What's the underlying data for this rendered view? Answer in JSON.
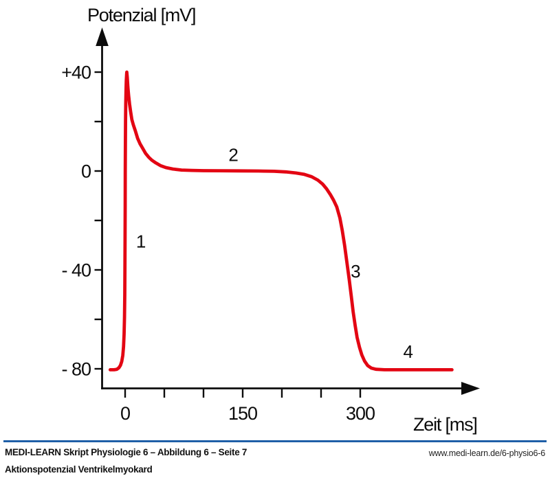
{
  "figure": {
    "y_axis_title": "Potenzial [mV]",
    "x_axis_title": "Zeit [ms]"
  },
  "colors": {
    "curve_red": "#e30613",
    "axis_black": "#0c0c0c",
    "divider_blue": "#1f5fa8"
  },
  "chart_data": {
    "type": "line",
    "title": "Aktionspotenzial Ventrikelmyokard",
    "xlabel": "Zeit [ms]",
    "ylabel": "Potenzial [mV]",
    "xlim": [
      -30,
      455
    ],
    "ylim": [
      -88,
      45
    ],
    "grid": false,
    "x_ticks": [
      {
        "t": 0,
        "label": "0"
      },
      {
        "t": 50,
        "label": ""
      },
      {
        "t": 100,
        "label": ""
      },
      {
        "t": 150,
        "label": "150"
      },
      {
        "t": 200,
        "label": ""
      },
      {
        "t": 250,
        "label": ""
      },
      {
        "t": 300,
        "label": "300"
      }
    ],
    "y_ticks": [
      {
        "mv": 40,
        "label": "+40"
      },
      {
        "mv": 20,
        "label": ""
      },
      {
        "mv": 0,
        "label": "0"
      },
      {
        "mv": -20,
        "label": ""
      },
      {
        "mv": -40,
        "label": "- 40"
      },
      {
        "mv": -60,
        "label": ""
      },
      {
        "mv": -80,
        "label": "- 80"
      }
    ],
    "phase_labels": [
      {
        "label": "1",
        "t": 20,
        "mv": -28.5
      },
      {
        "label": "2",
        "t": 138,
        "mv": 6.5
      },
      {
        "label": "3",
        "t": 294,
        "mv": -40.5
      },
      {
        "label": "4",
        "t": 361,
        "mv": -73
      }
    ],
    "series": [
      {
        "name": "Aktionspotenzial Ventrikelmyokard",
        "color": "#e30613",
        "units": [
          "ms",
          "mV"
        ],
        "points": [
          [
            -19,
            -80.4
          ],
          [
            -14,
            -80.4
          ],
          [
            -10.5,
            -80.2
          ],
          [
            -8,
            -79.6
          ],
          [
            -6,
            -78.6
          ],
          [
            -4.3,
            -77
          ],
          [
            -3,
            -74.6
          ],
          [
            -2,
            -71
          ],
          [
            -1.3,
            -66
          ],
          [
            -0.8,
            -59
          ],
          [
            -0.45,
            -50
          ],
          [
            -0.25,
            -40
          ],
          [
            -0.1,
            -28
          ],
          [
            0.05,
            -14
          ],
          [
            0.2,
            0
          ],
          [
            0.35,
            11
          ],
          [
            0.55,
            20
          ],
          [
            0.8,
            27
          ],
          [
            1.1,
            32.5
          ],
          [
            1.5,
            36.6
          ],
          [
            1.9,
            39.2
          ],
          [
            2.1,
            40
          ],
          [
            2.7,
            38
          ],
          [
            3.5,
            34
          ],
          [
            4.5,
            30.5
          ],
          [
            5.7,
            27
          ],
          [
            7,
            24
          ],
          [
            8.6,
            20.8
          ],
          [
            10.5,
            18.6
          ],
          [
            13,
            16.3
          ],
          [
            16,
            13.2
          ],
          [
            19,
            11
          ],
          [
            22,
            9.4
          ],
          [
            26,
            7.2
          ],
          [
            30,
            5.6
          ],
          [
            34,
            4.4
          ],
          [
            39,
            3.3
          ],
          [
            45,
            2.2
          ],
          [
            52,
            1.4
          ],
          [
            61,
            0.8
          ],
          [
            72,
            0.4
          ],
          [
            85,
            0.25
          ],
          [
            100,
            0.15
          ],
          [
            120,
            0.1
          ],
          [
            145,
            0.05
          ],
          [
            170,
            0
          ],
          [
            190,
            -0.1
          ],
          [
            205,
            -0.35
          ],
          [
            218,
            -0.8
          ],
          [
            228,
            -1.3
          ],
          [
            238,
            -2.3
          ],
          [
            246,
            -3.7
          ],
          [
            252,
            -5.3
          ],
          [
            257,
            -7.2
          ],
          [
            262,
            -9.6
          ],
          [
            266,
            -11.8
          ],
          [
            270,
            -14.5
          ],
          [
            274,
            -19
          ],
          [
            277,
            -24
          ],
          [
            280,
            -30
          ],
          [
            283,
            -37
          ],
          [
            286,
            -44
          ],
          [
            288.5,
            -50.5
          ],
          [
            291,
            -57
          ],
          [
            293.5,
            -62.5
          ],
          [
            296,
            -67.3
          ],
          [
            299,
            -71.3
          ],
          [
            302,
            -74.4
          ],
          [
            305.5,
            -76.9
          ],
          [
            309.5,
            -78.7
          ],
          [
            314,
            -79.7
          ],
          [
            320,
            -80.2
          ],
          [
            331,
            -80.4
          ],
          [
            350,
            -80.4
          ],
          [
            385,
            -80.4
          ],
          [
            417,
            -80.4
          ]
        ]
      }
    ]
  },
  "footer": {
    "line1": "MEDI-LEARN Skript Physiologie 6 – Abbildung 6 – Seite 7",
    "line2": "Aktionspotenzial Ventrikelmyokard",
    "url": "www.medi-learn.de/6-physio6-6"
  }
}
